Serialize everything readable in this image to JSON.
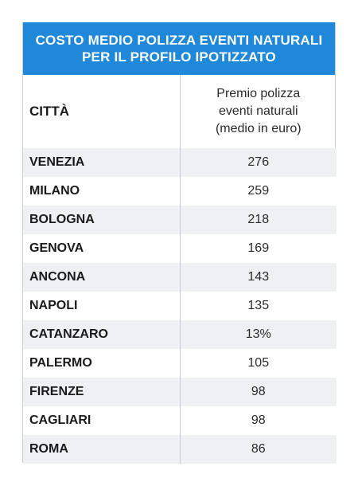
{
  "title": {
    "line1": "COSTO MEDIO POLIZZA EVENTI NATURALI",
    "line2": "PER IL PROFILO IPOTIZZATO"
  },
  "header": {
    "city_label": "CITTÀ",
    "value_line1": "Premio polizza",
    "value_line2": "eventi naturali",
    "value_line3": "(medio in euro)"
  },
  "rows": [
    {
      "city": "VENEZIA",
      "value": "276"
    },
    {
      "city": "MILANO",
      "value": "259"
    },
    {
      "city": "BOLOGNA",
      "value": "218"
    },
    {
      "city": "GENOVA",
      "value": "169"
    },
    {
      "city": "ANCONA",
      "value": "143"
    },
    {
      "city": "NAPOLI",
      "value": "135"
    },
    {
      "city": "CATANZARO",
      "value": "13%"
    },
    {
      "city": "PALERMO",
      "value": "105"
    },
    {
      "city": "FIRENZE",
      "value": "98"
    },
    {
      "city": "CAGLIARI",
      "value": "98"
    },
    {
      "city": "ROMA",
      "value": "86"
    }
  ],
  "colors": {
    "title_background": "#1f88d8",
    "stripe": "#eef0f3"
  }
}
